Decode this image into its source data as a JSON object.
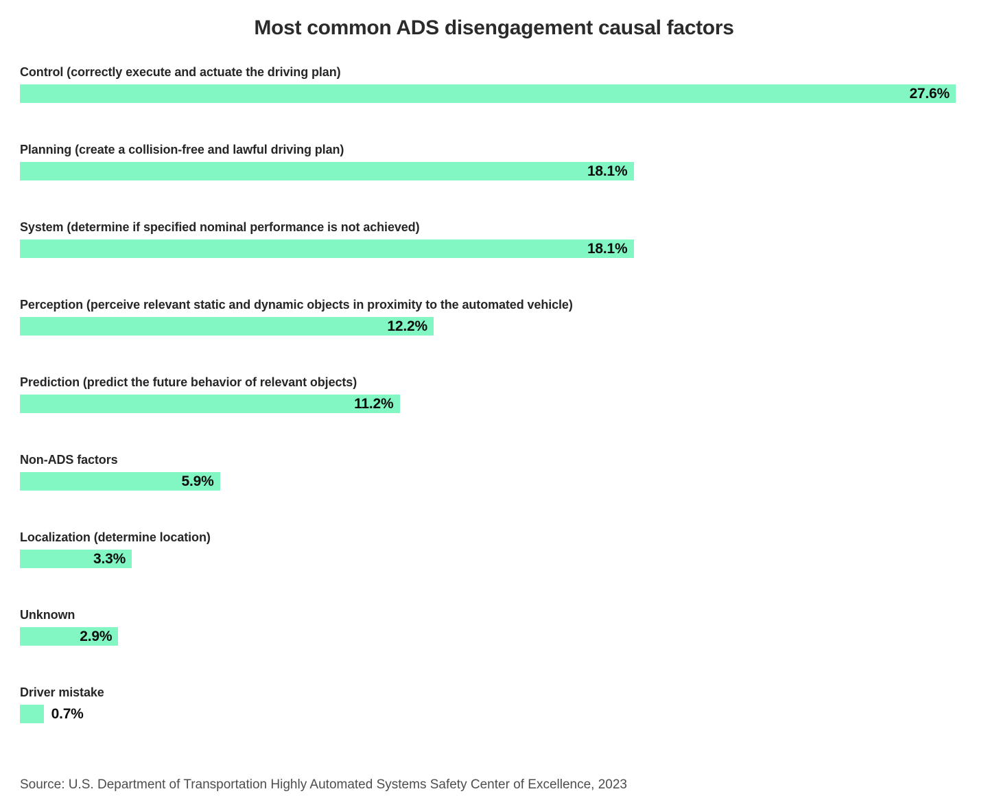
{
  "chart_data": {
    "type": "bar",
    "orientation": "horizontal",
    "title": "Most common ADS disengagement causal factors",
    "categories": [
      "Control (correctly execute and actuate the driving plan)",
      "Planning (create a collision-free and lawful driving plan)",
      "System (determine if specified nominal performance is not achieved)",
      "Perception (perceive relevant static and dynamic objects in proximity to the automated vehicle)",
      "Prediction (predict the future behavior of relevant objects)",
      "Non-ADS factors",
      "Localization (determine location)",
      "Unknown",
      "Driver mistake"
    ],
    "values": [
      27.6,
      18.1,
      18.1,
      12.2,
      11.2,
      5.9,
      3.3,
      2.9,
      0.7
    ],
    "value_labels": [
      "27.6%",
      "18.1%",
      "18.1%",
      "12.2%",
      "11.2%",
      "5.9%",
      "3.3%",
      "2.9%",
      "0.7%"
    ],
    "xlabel": "",
    "ylabel": "",
    "xlim": [
      0,
      27.6
    ],
    "grid": false,
    "legend": false,
    "bar_color": "#82f6c3",
    "label_color": "#262626",
    "value_color": "#0d0d0d",
    "background_color": "#ffffff",
    "source": "Source: U.S. Department of Transportation Highly Automated Systems Safety Center of Excellence, 2023"
  }
}
